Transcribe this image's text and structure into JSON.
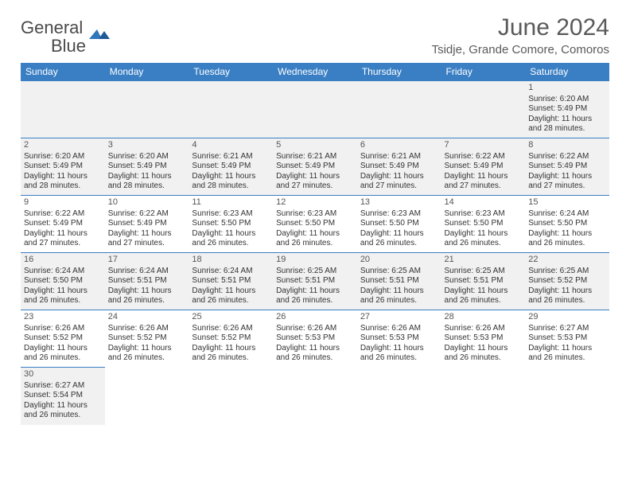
{
  "brand": {
    "name_part1": "General",
    "name_part2": "Blue",
    "text_color": "#4a4a4a",
    "accent_color": "#2f76bb"
  },
  "title": "June 2024",
  "location": "Tsidje, Grande Comore, Comoros",
  "colors": {
    "header_bg": "#3a7fc4",
    "header_text": "#ffffff",
    "row_border": "#3a7fc4",
    "shade_row": "#f1f1f1",
    "plain_row": "#ffffff",
    "body_text": "#333333"
  },
  "weekdays": [
    "Sunday",
    "Monday",
    "Tuesday",
    "Wednesday",
    "Thursday",
    "Friday",
    "Saturday"
  ],
  "labels": {
    "sunrise": "Sunrise:",
    "sunset": "Sunset:",
    "daylight_prefix": "Daylight:"
  },
  "weeks": [
    [
      null,
      null,
      null,
      null,
      null,
      null,
      {
        "n": "1",
        "sunrise": "6:20 AM",
        "sunset": "5:49 PM",
        "daylight": "11 hours and 28 minutes."
      }
    ],
    [
      {
        "n": "2",
        "sunrise": "6:20 AM",
        "sunset": "5:49 PM",
        "daylight": "11 hours and 28 minutes."
      },
      {
        "n": "3",
        "sunrise": "6:20 AM",
        "sunset": "5:49 PM",
        "daylight": "11 hours and 28 minutes."
      },
      {
        "n": "4",
        "sunrise": "6:21 AM",
        "sunset": "5:49 PM",
        "daylight": "11 hours and 28 minutes."
      },
      {
        "n": "5",
        "sunrise": "6:21 AM",
        "sunset": "5:49 PM",
        "daylight": "11 hours and 27 minutes."
      },
      {
        "n": "6",
        "sunrise": "6:21 AM",
        "sunset": "5:49 PM",
        "daylight": "11 hours and 27 minutes."
      },
      {
        "n": "7",
        "sunrise": "6:22 AM",
        "sunset": "5:49 PM",
        "daylight": "11 hours and 27 minutes."
      },
      {
        "n": "8",
        "sunrise": "6:22 AM",
        "sunset": "5:49 PM",
        "daylight": "11 hours and 27 minutes."
      }
    ],
    [
      {
        "n": "9",
        "sunrise": "6:22 AM",
        "sunset": "5:49 PM",
        "daylight": "11 hours and 27 minutes."
      },
      {
        "n": "10",
        "sunrise": "6:22 AM",
        "sunset": "5:49 PM",
        "daylight": "11 hours and 27 minutes."
      },
      {
        "n": "11",
        "sunrise": "6:23 AM",
        "sunset": "5:50 PM",
        "daylight": "11 hours and 26 minutes."
      },
      {
        "n": "12",
        "sunrise": "6:23 AM",
        "sunset": "5:50 PM",
        "daylight": "11 hours and 26 minutes."
      },
      {
        "n": "13",
        "sunrise": "6:23 AM",
        "sunset": "5:50 PM",
        "daylight": "11 hours and 26 minutes."
      },
      {
        "n": "14",
        "sunrise": "6:23 AM",
        "sunset": "5:50 PM",
        "daylight": "11 hours and 26 minutes."
      },
      {
        "n": "15",
        "sunrise": "6:24 AM",
        "sunset": "5:50 PM",
        "daylight": "11 hours and 26 minutes."
      }
    ],
    [
      {
        "n": "16",
        "sunrise": "6:24 AM",
        "sunset": "5:50 PM",
        "daylight": "11 hours and 26 minutes."
      },
      {
        "n": "17",
        "sunrise": "6:24 AM",
        "sunset": "5:51 PM",
        "daylight": "11 hours and 26 minutes."
      },
      {
        "n": "18",
        "sunrise": "6:24 AM",
        "sunset": "5:51 PM",
        "daylight": "11 hours and 26 minutes."
      },
      {
        "n": "19",
        "sunrise": "6:25 AM",
        "sunset": "5:51 PM",
        "daylight": "11 hours and 26 minutes."
      },
      {
        "n": "20",
        "sunrise": "6:25 AM",
        "sunset": "5:51 PM",
        "daylight": "11 hours and 26 minutes."
      },
      {
        "n": "21",
        "sunrise": "6:25 AM",
        "sunset": "5:51 PM",
        "daylight": "11 hours and 26 minutes."
      },
      {
        "n": "22",
        "sunrise": "6:25 AM",
        "sunset": "5:52 PM",
        "daylight": "11 hours and 26 minutes."
      }
    ],
    [
      {
        "n": "23",
        "sunrise": "6:26 AM",
        "sunset": "5:52 PM",
        "daylight": "11 hours and 26 minutes."
      },
      {
        "n": "24",
        "sunrise": "6:26 AM",
        "sunset": "5:52 PM",
        "daylight": "11 hours and 26 minutes."
      },
      {
        "n": "25",
        "sunrise": "6:26 AM",
        "sunset": "5:52 PM",
        "daylight": "11 hours and 26 minutes."
      },
      {
        "n": "26",
        "sunrise": "6:26 AM",
        "sunset": "5:53 PM",
        "daylight": "11 hours and 26 minutes."
      },
      {
        "n": "27",
        "sunrise": "6:26 AM",
        "sunset": "5:53 PM",
        "daylight": "11 hours and 26 minutes."
      },
      {
        "n": "28",
        "sunrise": "6:26 AM",
        "sunset": "5:53 PM",
        "daylight": "11 hours and 26 minutes."
      },
      {
        "n": "29",
        "sunrise": "6:27 AM",
        "sunset": "5:53 PM",
        "daylight": "11 hours and 26 minutes."
      }
    ],
    [
      {
        "n": "30",
        "sunrise": "6:27 AM",
        "sunset": "5:54 PM",
        "daylight": "11 hours and 26 minutes."
      },
      null,
      null,
      null,
      null,
      null,
      null
    ]
  ]
}
